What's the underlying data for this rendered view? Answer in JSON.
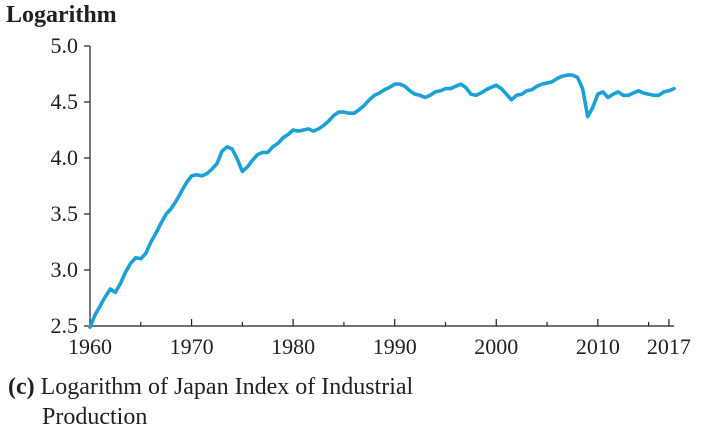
{
  "chart_data": {
    "type": "line",
    "ylabel": "Logarithm",
    "caption_panel": "(c)",
    "caption_line1": "Logarithm of Japan Index of Industrial",
    "caption_line2": "Production",
    "xlim": [
      1960,
      2017.5
    ],
    "ylim": [
      2.5,
      5.0
    ],
    "x_ticks": [
      1960,
      1970,
      1980,
      1990,
      2000,
      2010,
      2017
    ],
    "x_tick_labels": [
      "1960",
      "1970",
      "1980",
      "1990",
      "2000",
      "2010",
      "2017"
    ],
    "y_ticks": [
      2.5,
      3.0,
      3.5,
      4.0,
      4.5,
      5.0
    ],
    "y_tick_labels": [
      "2.5",
      "3.0",
      "3.5",
      "4.0",
      "4.5",
      "5.0"
    ],
    "minor_x_ticks": [
      1965,
      1975,
      1985,
      1995,
      2005,
      2015
    ],
    "line_color": "#1ba1d8",
    "grid": false,
    "series": [
      {
        "x": [
          1960.0,
          1960.5,
          1961.0,
          1961.5,
          1962.0,
          1962.5,
          1963.0,
          1963.5,
          1964.0,
          1964.5,
          1965.0,
          1965.5,
          1966.0,
          1966.5,
          1967.0,
          1967.5,
          1968.0,
          1968.5,
          1969.0,
          1969.5,
          1970.0,
          1970.5,
          1971.0,
          1971.5,
          1972.0,
          1972.5,
          1973.0,
          1973.5,
          1974.0,
          1974.5,
          1975.0,
          1975.5,
          1976.0,
          1976.5,
          1977.0,
          1977.5,
          1978.0,
          1978.5,
          1979.0,
          1979.5,
          1980.0,
          1980.5,
          1981.0,
          1981.5,
          1982.0,
          1982.5,
          1983.0,
          1983.5,
          1984.0,
          1984.5,
          1985.0,
          1985.5,
          1986.0,
          1986.5,
          1987.0,
          1987.5,
          1988.0,
          1988.5,
          1989.0,
          1989.5,
          1990.0,
          1990.5,
          1991.0,
          1991.5,
          1992.0,
          1992.5,
          1993.0,
          1993.5,
          1994.0,
          1994.5,
          1995.0,
          1995.5,
          1996.0,
          1996.5,
          1997.0,
          1997.5,
          1998.0,
          1998.5,
          1999.0,
          1999.5,
          2000.0,
          2000.5,
          2001.0,
          2001.5,
          2002.0,
          2002.5,
          2003.0,
          2003.5,
          2004.0,
          2004.5,
          2005.0,
          2005.5,
          2006.0,
          2006.5,
          2007.0,
          2007.5,
          2008.0,
          2008.5,
          2009.0,
          2009.5,
          2010.0,
          2010.5,
          2011.0,
          2011.5,
          2012.0,
          2012.5,
          2013.0,
          2013.5,
          2014.0,
          2014.5,
          2015.0,
          2015.5,
          2016.0,
          2016.5,
          2017.0,
          2017.5
        ],
        "values": [
          2.49,
          2.6,
          2.68,
          2.76,
          2.83,
          2.8,
          2.88,
          2.98,
          3.06,
          3.11,
          3.1,
          3.15,
          3.25,
          3.33,
          3.42,
          3.5,
          3.55,
          3.62,
          3.7,
          3.78,
          3.84,
          3.85,
          3.84,
          3.86,
          3.9,
          3.95,
          4.06,
          4.1,
          4.08,
          3.99,
          3.88,
          3.92,
          3.98,
          4.03,
          4.05,
          4.05,
          4.1,
          4.13,
          4.18,
          4.21,
          4.25,
          4.24,
          4.25,
          4.26,
          4.24,
          4.26,
          4.29,
          4.33,
          4.38,
          4.41,
          4.41,
          4.4,
          4.4,
          4.43,
          4.47,
          4.52,
          4.56,
          4.58,
          4.61,
          4.63,
          4.66,
          4.66,
          4.64,
          4.6,
          4.57,
          4.56,
          4.54,
          4.56,
          4.59,
          4.6,
          4.62,
          4.62,
          4.64,
          4.66,
          4.63,
          4.57,
          4.56,
          4.58,
          4.61,
          4.63,
          4.65,
          4.62,
          4.57,
          4.52,
          4.56,
          4.57,
          4.6,
          4.61,
          4.64,
          4.66,
          4.67,
          4.68,
          4.71,
          4.73,
          4.74,
          4.74,
          4.72,
          4.62,
          4.37,
          4.45,
          4.57,
          4.59,
          4.54,
          4.57,
          4.59,
          4.56,
          4.56,
          4.58,
          4.6,
          4.58,
          4.57,
          4.56,
          4.56,
          4.59,
          4.6,
          4.62
        ]
      }
    ]
  }
}
